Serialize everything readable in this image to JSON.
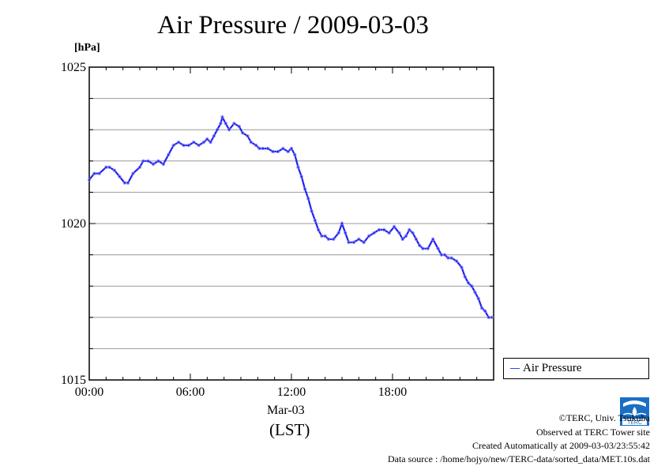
{
  "title": "Air Pressure / 2009-03-03",
  "unit_label": "[hPa]",
  "x_date_label": "Mar-03",
  "x_axis_label": "(LST)",
  "legend": {
    "label": "Air Pressure"
  },
  "footer": {
    "copyright": "©TERC, Univ. Tsukuba",
    "observed": "Observed at TERC Tower site",
    "created": "Created Automatically at 2009-03-03/23:55:42",
    "source": "Data source : /home/hojyo/new/TERC-data/sorted_data/MET.10s.dat"
  },
  "logo": {
    "text": "TERC",
    "icon": "terc-logo"
  },
  "colors": {
    "series": "#2222ee",
    "marker": "#8888ff",
    "grid": "#999999"
  },
  "chart_data": {
    "type": "line",
    "title": "Air Pressure / 2009-03-03",
    "ylabel": "[hPa]",
    "xlabel": "(LST)",
    "xlim": [
      0,
      24
    ],
    "ylim": [
      1015,
      1025
    ],
    "x_ticks": [
      {
        "value": 0,
        "label": "00:00"
      },
      {
        "value": 6,
        "label": "06:00"
      },
      {
        "value": 12,
        "label": "12:00"
      },
      {
        "value": 18,
        "label": "18:00"
      }
    ],
    "y_ticks": [
      {
        "value": 1015,
        "label": "1015"
      },
      {
        "value": 1020,
        "label": "1020"
      },
      {
        "value": 1025,
        "label": "1025"
      }
    ],
    "y_minor_step": 1,
    "grid": true,
    "legend_position": "right",
    "series": [
      {
        "name": "Air Pressure",
        "x": [
          0,
          0.3,
          0.6,
          1.0,
          1.2,
          1.5,
          1.8,
          2.1,
          2.3,
          2.6,
          3.0,
          3.2,
          3.5,
          3.8,
          4.1,
          4.4,
          4.7,
          5.0,
          5.3,
          5.6,
          5.9,
          6.2,
          6.5,
          6.8,
          7.0,
          7.2,
          7.4,
          7.6,
          7.8,
          7.9,
          8.1,
          8.3,
          8.6,
          8.9,
          9.1,
          9.4,
          9.6,
          9.9,
          10.1,
          10.3,
          10.6,
          10.9,
          11.2,
          11.5,
          11.8,
          12.0,
          12.2,
          12.4,
          12.6,
          12.8,
          13.0,
          13.2,
          13.4,
          13.6,
          13.8,
          14.0,
          14.2,
          14.5,
          14.8,
          15.0,
          15.2,
          15.4,
          15.7,
          16.0,
          16.3,
          16.6,
          16.9,
          17.2,
          17.5,
          17.8,
          18.1,
          18.4,
          18.6,
          18.8,
          19.0,
          19.2,
          19.4,
          19.6,
          19.8,
          20.1,
          20.4,
          20.7,
          20.9,
          21.1,
          21.3,
          21.5,
          21.8,
          22.1,
          22.3,
          22.5,
          22.7,
          22.9,
          23.1,
          23.3,
          23.5,
          23.7,
          23.9
        ],
        "values": [
          1021.4,
          1021.6,
          1021.6,
          1021.8,
          1021.8,
          1021.7,
          1021.5,
          1021.3,
          1021.3,
          1021.6,
          1021.8,
          1022.0,
          1022.0,
          1021.9,
          1022.0,
          1021.9,
          1022.2,
          1022.5,
          1022.6,
          1022.5,
          1022.5,
          1022.6,
          1022.5,
          1022.6,
          1022.7,
          1022.6,
          1022.8,
          1023.0,
          1023.2,
          1023.4,
          1023.2,
          1023.0,
          1023.2,
          1023.1,
          1022.9,
          1022.8,
          1022.6,
          1022.5,
          1022.4,
          1022.4,
          1022.4,
          1022.3,
          1022.3,
          1022.4,
          1022.3,
          1022.4,
          1022.2,
          1021.8,
          1021.5,
          1021.1,
          1020.8,
          1020.4,
          1020.1,
          1019.8,
          1019.6,
          1019.6,
          1019.5,
          1019.5,
          1019.7,
          1020.0,
          1019.7,
          1019.4,
          1019.4,
          1019.5,
          1019.4,
          1019.6,
          1019.7,
          1019.8,
          1019.8,
          1019.7,
          1019.9,
          1019.7,
          1019.5,
          1019.6,
          1019.8,
          1019.7,
          1019.5,
          1019.3,
          1019.2,
          1019.2,
          1019.5,
          1019.2,
          1019.0,
          1019.0,
          1018.9,
          1018.9,
          1018.8,
          1018.6,
          1018.3,
          1018.1,
          1018.0,
          1017.8,
          1017.6,
          1017.3,
          1017.2,
          1017.0,
          1017.0
        ]
      }
    ]
  }
}
